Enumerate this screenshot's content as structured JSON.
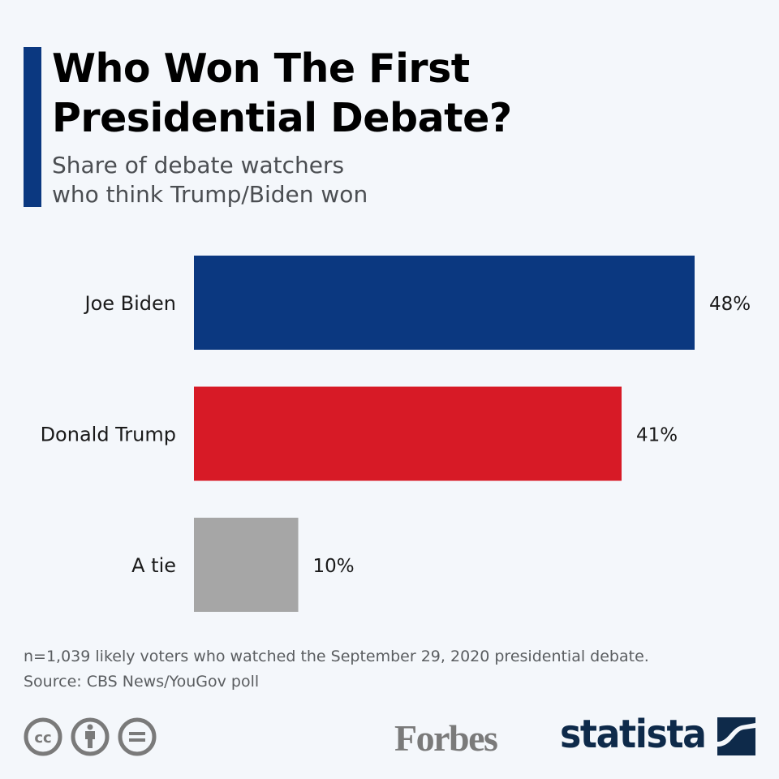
{
  "header": {
    "title_line1": "Who Won The First",
    "title_line2": "Presidential Debate?",
    "subtitle_line1": "Share of debate watchers",
    "subtitle_line2": "who think Trump/Biden won",
    "accent_color": "#0b3880"
  },
  "chart_data": {
    "type": "bar",
    "orientation": "horizontal",
    "title": "Who Won The First Presidential Debate?",
    "subtitle": "Share of debate watchers who think Trump/Biden won",
    "categories": [
      "Joe Biden",
      "Donald Trump",
      "A tie"
    ],
    "values": [
      48,
      41,
      10
    ],
    "value_labels": [
      "48%",
      "41%",
      "10%"
    ],
    "colors": [
      "#0b3880",
      "#d71a26",
      "#a6a6a6"
    ],
    "unit": "%",
    "xlabel": "",
    "ylabel": "",
    "xlim": [
      0,
      48
    ],
    "grid": false,
    "legend": "none"
  },
  "footer": {
    "note": "n=1,039 likely voters who watched the September 29, 2020 presidential debate.",
    "source": "Source: CBS News/YouGov poll",
    "license_icons": [
      "cc-icon",
      "attribution-icon",
      "no-derivatives-icon"
    ],
    "forbes_logo": "Forbes",
    "statista_logo": "statista"
  }
}
